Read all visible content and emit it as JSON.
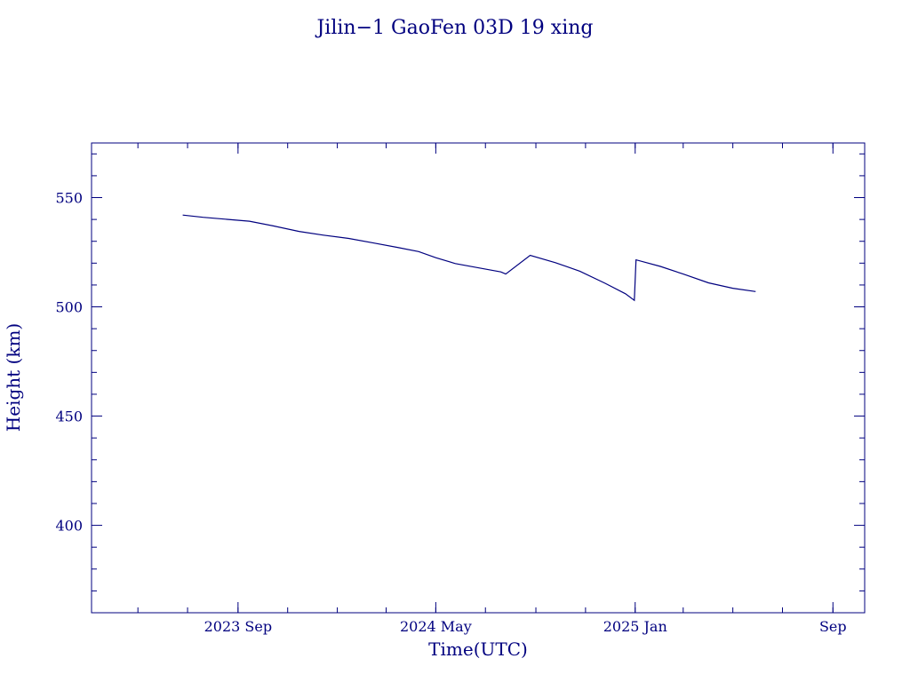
{
  "chart_data": {
    "type": "line",
    "title": "Jilin−1 GaoFen 03D 19 xing",
    "xlabel": "Time(UTC)",
    "ylabel": "Height (km)",
    "ylim": [
      360,
      575
    ],
    "xlim": [
      "2023-03-05",
      "2025-10-10"
    ],
    "x_ticks": [
      {
        "date": "2023-09-01",
        "label": "2023 Sep"
      },
      {
        "date": "2024-05-01",
        "label": "2024 May"
      },
      {
        "date": "2025-01-01",
        "label": "2025 Jan"
      },
      {
        "date": "2025-09-01",
        "label": "Sep"
      }
    ],
    "y_ticks": [
      {
        "value": 400,
        "label": "400"
      },
      {
        "value": 450,
        "label": "450"
      },
      {
        "value": 500,
        "label": "500"
      },
      {
        "value": 550,
        "label": "550"
      }
    ],
    "grid": false,
    "colors": {
      "axis": "#00007f",
      "line": "#00007f"
    },
    "series": [
      {
        "x": [
          "2023-06-25",
          "2023-07-20",
          "2023-08-20",
          "2023-09-15",
          "2023-10-15",
          "2023-11-15",
          "2023-12-15",
          "2024-01-15",
          "2024-02-15",
          "2024-03-15",
          "2024-04-10",
          "2024-05-01",
          "2024-05-25",
          "2024-06-20",
          "2024-07-20",
          "2024-07-26",
          "2024-08-25",
          "2024-09-25",
          "2024-10-25",
          "2024-11-25",
          "2024-12-20",
          "2024-12-31",
          "2025-01-02",
          "2025-02-01",
          "2025-03-01",
          "2025-04-01",
          "2025-05-01",
          "2025-05-29"
        ],
        "y": [
          542.0,
          541.0,
          540.0,
          539.2,
          537.0,
          534.5,
          532.8,
          531.3,
          529.2,
          527.2,
          525.3,
          522.5,
          519.8,
          518.0,
          516.0,
          515.0,
          523.6,
          520.2,
          516.3,
          510.8,
          506.0,
          503.0,
          521.5,
          518.5,
          515.0,
          511.0,
          508.5,
          507.0
        ]
      }
    ]
  }
}
